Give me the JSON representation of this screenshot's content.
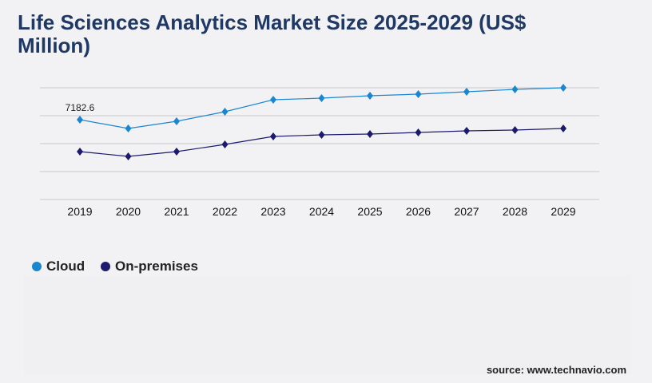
{
  "title": "Life Sciences Analytics Market Size 2025-2029 (US$ Million)",
  "source": "source: www.technavio.com",
  "chart_data": {
    "type": "line",
    "title": "Life Sciences Analytics Market Size 2025-2029 (US$ Million)",
    "categories": [
      "2019",
      "2020",
      "2021",
      "2022",
      "2023",
      "2024",
      "2025",
      "2026",
      "2027",
      "2028",
      "2029"
    ],
    "series": [
      {
        "name": "Cloud",
        "color": "#1a86d0",
        "values": [
          7182.6,
          6393,
          7039,
          7901,
          8978,
          9122,
          9337,
          9481,
          9696,
          9912,
          10055
        ]
      },
      {
        "name": "On-premises",
        "color": "#1c1a6e",
        "values": [
          4310,
          3879,
          4310,
          4956,
          5674,
          5818,
          5890,
          6033,
          6177,
          6249,
          6393
        ]
      }
    ],
    "data_labels": [
      {
        "series": "Cloud",
        "category": "2019",
        "text": "7182.6"
      }
    ],
    "ylim": [
      0,
      10056
    ],
    "grid": true,
    "legend": "bottom-left",
    "xlabel": "",
    "ylabel": ""
  }
}
